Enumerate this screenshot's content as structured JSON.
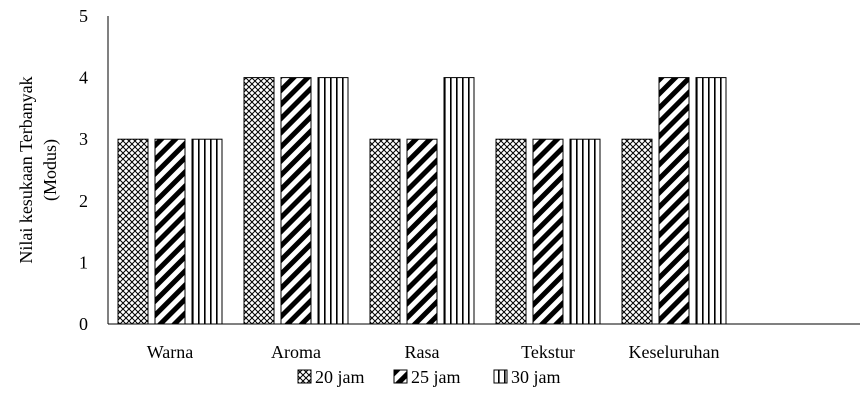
{
  "chart_data": {
    "type": "bar",
    "categories": [
      "Warna",
      "Aroma",
      "Rasa",
      "Tekstur",
      "Keseluruhan"
    ],
    "series": [
      {
        "name": "20 jam",
        "values": [
          3,
          4,
          3,
          3,
          3
        ],
        "pattern": "crosshatch"
      },
      {
        "name": "25 jam",
        "values": [
          3,
          4,
          3,
          3,
          4
        ],
        "pattern": "diagonal"
      },
      {
        "name": "30 jam",
        "values": [
          3,
          4,
          4,
          3,
          4
        ],
        "pattern": "vertical"
      }
    ],
    "ylabel_line1": "Nilai kesukaan Terbanyak",
    "ylabel_line2": "(Modus)",
    "ylim": [
      0,
      5
    ],
    "yticks": [
      "0",
      "1",
      "2",
      "3",
      "4",
      "5"
    ],
    "legend_position": "bottom",
    "grid": false
  }
}
